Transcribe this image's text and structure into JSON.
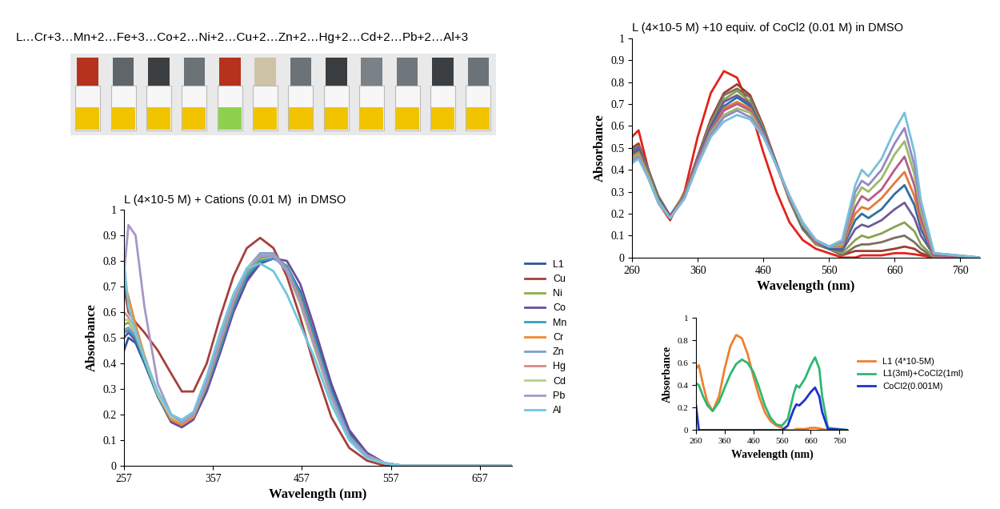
{
  "header": "L…Cr+3…Mn+2…Fe+3…Co+2…Ni+2…Cu+2…Zn+2…Hg+2…Cd+2…Pb+2…Al+3",
  "chart_data": [
    {
      "type": "line",
      "title": "L (4×10-5 M) + Cations (0.01 M)  in DMSO",
      "x_label": "Wavelength (nm)",
      "y_label": "Absorbance",
      "x": [
        257,
        262,
        270,
        280,
        295,
        310,
        322,
        335,
        350,
        365,
        380,
        395,
        410,
        425,
        440,
        455,
        470,
        490,
        510,
        530,
        550,
        570,
        620,
        693
      ],
      "xlim": [
        257,
        693
      ],
      "xticks": [
        257,
        357,
        457,
        557,
        657
      ],
      "ylim": [
        0,
        1
      ],
      "yticks": [
        0,
        0.1,
        0.2,
        0.3,
        0.4,
        0.5,
        0.6,
        0.7,
        0.8,
        0.9,
        1
      ],
      "grid": false,
      "legend": "right",
      "series": [
        {
          "name": "L1",
          "color": "#2F5597",
          "values": [
            0.45,
            0.5,
            0.48,
            0.4,
            0.27,
            0.18,
            0.16,
            0.2,
            0.32,
            0.47,
            0.62,
            0.73,
            0.79,
            0.81,
            0.78,
            0.68,
            0.52,
            0.3,
            0.13,
            0.05,
            0.01,
            0,
            0,
            0
          ]
        },
        {
          "name": "Cu",
          "color": "#A5403D",
          "values": [
            0.7,
            0.6,
            0.56,
            0.52,
            0.45,
            0.36,
            0.29,
            0.29,
            0.4,
            0.58,
            0.74,
            0.85,
            0.89,
            0.85,
            0.74,
            0.58,
            0.4,
            0.19,
            0.07,
            0.02,
            0,
            0,
            0,
            0
          ]
        },
        {
          "name": "Ni",
          "color": "#8CAE46",
          "values": [
            0.55,
            0.56,
            0.52,
            0.42,
            0.28,
            0.18,
            0.16,
            0.19,
            0.31,
            0.47,
            0.63,
            0.75,
            0.81,
            0.82,
            0.78,
            0.66,
            0.5,
            0.28,
            0.12,
            0.04,
            0.01,
            0,
            0,
            0
          ]
        },
        {
          "name": "Co",
          "color": "#6B4C9A",
          "values": [
            0.5,
            0.52,
            0.49,
            0.41,
            0.27,
            0.17,
            0.15,
            0.18,
            0.29,
            0.44,
            0.6,
            0.72,
            0.79,
            0.81,
            0.8,
            0.71,
            0.55,
            0.32,
            0.14,
            0.05,
            0.01,
            0,
            0,
            0
          ]
        },
        {
          "name": "Mn",
          "color": "#31A0C0",
          "values": [
            0.52,
            0.53,
            0.5,
            0.41,
            0.27,
            0.18,
            0.16,
            0.19,
            0.31,
            0.46,
            0.62,
            0.74,
            0.8,
            0.81,
            0.78,
            0.67,
            0.51,
            0.29,
            0.12,
            0.04,
            0.01,
            0,
            0,
            0
          ]
        },
        {
          "name": "Cr",
          "color": "#F0882F",
          "values": [
            0.72,
            0.66,
            0.55,
            0.43,
            0.28,
            0.18,
            0.16,
            0.19,
            0.32,
            0.48,
            0.64,
            0.76,
            0.82,
            0.82,
            0.77,
            0.65,
            0.49,
            0.27,
            0.11,
            0.04,
            0.01,
            0,
            0,
            0
          ]
        },
        {
          "name": "Zn",
          "color": "#7E9ED0",
          "values": [
            0.53,
            0.54,
            0.51,
            0.42,
            0.28,
            0.19,
            0.17,
            0.2,
            0.33,
            0.49,
            0.65,
            0.77,
            0.83,
            0.83,
            0.77,
            0.64,
            0.48,
            0.26,
            0.11,
            0.04,
            0.01,
            0,
            0,
            0
          ]
        },
        {
          "name": "Hg",
          "color": "#D58A89",
          "values": [
            0.6,
            0.58,
            0.52,
            0.42,
            0.28,
            0.19,
            0.17,
            0.2,
            0.33,
            0.49,
            0.65,
            0.76,
            0.82,
            0.82,
            0.76,
            0.64,
            0.48,
            0.27,
            0.11,
            0.04,
            0.01,
            0,
            0,
            0
          ]
        },
        {
          "name": "Cd",
          "color": "#B8CF8C",
          "values": [
            0.57,
            0.57,
            0.52,
            0.42,
            0.28,
            0.19,
            0.17,
            0.2,
            0.33,
            0.49,
            0.65,
            0.77,
            0.82,
            0.82,
            0.76,
            0.63,
            0.47,
            0.26,
            0.11,
            0.04,
            0.01,
            0,
            0,
            0
          ]
        },
        {
          "name": "Pb",
          "color": "#A696C8",
          "values": [
            0.75,
            0.94,
            0.9,
            0.62,
            0.32,
            0.2,
            0.17,
            0.2,
            0.33,
            0.49,
            0.65,
            0.76,
            0.82,
            0.82,
            0.76,
            0.64,
            0.48,
            0.27,
            0.11,
            0.04,
            0.01,
            0,
            0,
            0
          ]
        },
        {
          "name": "Al",
          "color": "#6FC6E0",
          "values": [
            0.8,
            0.62,
            0.53,
            0.42,
            0.29,
            0.2,
            0.18,
            0.21,
            0.35,
            0.52,
            0.67,
            0.77,
            0.79,
            0.76,
            0.67,
            0.55,
            0.43,
            0.24,
            0.1,
            0.03,
            0.01,
            0,
            0,
            0
          ]
        }
      ]
    },
    {
      "type": "line",
      "title": "L (4×10-5 M) +10 equiv. of CoCl2 (0.01 M) in DMSO",
      "x_label": "Wavelength (nm)",
      "y_label": "Absorbance",
      "x": [
        260,
        270,
        285,
        300,
        318,
        340,
        360,
        380,
        400,
        420,
        440,
        460,
        480,
        500,
        520,
        540,
        560,
        580,
        600,
        610,
        620,
        640,
        660,
        675,
        690,
        700,
        720,
        790
      ],
      "xlim": [
        260,
        790
      ],
      "xticks": [
        260,
        360,
        460,
        560,
        660,
        760
      ],
      "ylim": [
        0,
        1
      ],
      "yticks": [
        0,
        0.1,
        0.2,
        0.3,
        0.4,
        0.5,
        0.6,
        0.7,
        0.8,
        0.9,
        1
      ],
      "grid": false,
      "series": [
        {
          "color": "#E3221B",
          "values": [
            0.55,
            0.58,
            0.4,
            0.25,
            0.17,
            0.3,
            0.55,
            0.75,
            0.85,
            0.82,
            0.68,
            0.48,
            0.3,
            0.16,
            0.08,
            0.04,
            0.02,
            0,
            0,
            0.01,
            0.01,
            0.01,
            0.02,
            0.02,
            0.015,
            0.01,
            0,
            0
          ]
        },
        {
          "color": "#9C3D30",
          "values": [
            0.5,
            0.52,
            0.4,
            0.28,
            0.19,
            0.29,
            0.46,
            0.63,
            0.75,
            0.79,
            0.74,
            0.6,
            0.43,
            0.26,
            0.13,
            0.06,
            0.04,
            0.01,
            0.03,
            0.03,
            0.03,
            0.03,
            0.04,
            0.05,
            0.04,
            0.02,
            0,
            0
          ]
        },
        {
          "color": "#7C6F5E",
          "values": [
            0.49,
            0.51,
            0.4,
            0.28,
            0.19,
            0.29,
            0.46,
            0.62,
            0.74,
            0.77,
            0.73,
            0.59,
            0.43,
            0.26,
            0.13,
            0.06,
            0.04,
            0.01,
            0.05,
            0.06,
            0.06,
            0.07,
            0.09,
            0.1,
            0.07,
            0.04,
            0,
            0
          ]
        },
        {
          "color": "#8AA14F",
          "values": [
            0.48,
            0.5,
            0.39,
            0.27,
            0.19,
            0.29,
            0.45,
            0.61,
            0.72,
            0.76,
            0.71,
            0.59,
            0.43,
            0.26,
            0.14,
            0.06,
            0.04,
            0.02,
            0.08,
            0.1,
            0.09,
            0.11,
            0.14,
            0.16,
            0.12,
            0.06,
            0,
            0
          ]
        },
        {
          "color": "#6E5A99",
          "values": [
            0.48,
            0.5,
            0.39,
            0.27,
            0.19,
            0.28,
            0.45,
            0.6,
            0.71,
            0.74,
            0.7,
            0.58,
            0.43,
            0.27,
            0.14,
            0.07,
            0.04,
            0.03,
            0.13,
            0.15,
            0.14,
            0.17,
            0.22,
            0.25,
            0.18,
            0.1,
            0.01,
            0
          ]
        },
        {
          "color": "#2E6EA6",
          "values": [
            0.47,
            0.49,
            0.38,
            0.27,
            0.18,
            0.28,
            0.44,
            0.59,
            0.69,
            0.73,
            0.69,
            0.58,
            0.42,
            0.27,
            0.14,
            0.07,
            0.04,
            0.04,
            0.17,
            0.2,
            0.18,
            0.22,
            0.29,
            0.33,
            0.24,
            0.13,
            0.01,
            0
          ]
        },
        {
          "color": "#E07B39",
          "values": [
            0.46,
            0.48,
            0.38,
            0.26,
            0.18,
            0.28,
            0.44,
            0.58,
            0.68,
            0.71,
            0.68,
            0.57,
            0.42,
            0.27,
            0.15,
            0.07,
            0.05,
            0.05,
            0.2,
            0.23,
            0.22,
            0.27,
            0.34,
            0.39,
            0.28,
            0.16,
            0.01,
            0
          ]
        },
        {
          "color": "#B65C8A",
          "values": [
            0.45,
            0.47,
            0.37,
            0.26,
            0.18,
            0.28,
            0.44,
            0.58,
            0.67,
            0.7,
            0.67,
            0.57,
            0.42,
            0.27,
            0.15,
            0.07,
            0.05,
            0.06,
            0.23,
            0.28,
            0.26,
            0.31,
            0.4,
            0.46,
            0.33,
            0.18,
            0.01,
            0
          ]
        },
        {
          "color": "#9DBB67",
          "values": [
            0.45,
            0.47,
            0.37,
            0.26,
            0.18,
            0.27,
            0.43,
            0.57,
            0.65,
            0.68,
            0.66,
            0.56,
            0.42,
            0.28,
            0.15,
            0.08,
            0.05,
            0.06,
            0.27,
            0.32,
            0.3,
            0.36,
            0.47,
            0.53,
            0.38,
            0.21,
            0.02,
            0
          ]
        },
        {
          "color": "#9887C4",
          "values": [
            0.44,
            0.46,
            0.36,
            0.25,
            0.18,
            0.27,
            0.43,
            0.56,
            0.64,
            0.67,
            0.64,
            0.56,
            0.42,
            0.28,
            0.16,
            0.08,
            0.05,
            0.07,
            0.3,
            0.35,
            0.33,
            0.4,
            0.52,
            0.59,
            0.42,
            0.24,
            0.02,
            0
          ]
        },
        {
          "color": "#79BEDC",
          "values": [
            0.43,
            0.45,
            0.36,
            0.25,
            0.18,
            0.27,
            0.42,
            0.55,
            0.62,
            0.65,
            0.63,
            0.55,
            0.42,
            0.28,
            0.16,
            0.08,
            0.05,
            0.08,
            0.33,
            0.4,
            0.37,
            0.45,
            0.58,
            0.66,
            0.48,
            0.26,
            0.02,
            0
          ]
        }
      ]
    },
    {
      "type": "line",
      "x_label": "Wavelength (nm)",
      "y_label": "Absorbance",
      "x": [
        260,
        270,
        285,
        300,
        318,
        340,
        360,
        380,
        400,
        420,
        440,
        460,
        480,
        500,
        520,
        540,
        560,
        580,
        600,
        610,
        620,
        640,
        660,
        675,
        690,
        700,
        720,
        790
      ],
      "xlim": [
        260,
        790
      ],
      "xticks": [
        260,
        360,
        460,
        560,
        660,
        760
      ],
      "ylim": [
        0,
        1
      ],
      "yticks": [
        0,
        0.2,
        0.4,
        0.6,
        0.8,
        1
      ],
      "grid": false,
      "legend": "right",
      "series": [
        {
          "name": "L1 (4*10-5M)",
          "color": "#F08030",
          "values": [
            0.55,
            0.58,
            0.4,
            0.25,
            0.17,
            0.3,
            0.55,
            0.75,
            0.85,
            0.82,
            0.68,
            0.48,
            0.3,
            0.16,
            0.08,
            0.04,
            0.02,
            0,
            0,
            0.01,
            0.01,
            0.01,
            0.02,
            0.02,
            0.015,
            0.01,
            0,
            0
          ]
        },
        {
          "name": "L1(3ml)+CoCl2(1ml)",
          "color": "#2EB872",
          "values": [
            0.42,
            0.4,
            0.3,
            0.22,
            0.17,
            0.25,
            0.38,
            0.5,
            0.59,
            0.63,
            0.6,
            0.52,
            0.38,
            0.22,
            0.11,
            0.05,
            0.04,
            0.1,
            0.32,
            0.4,
            0.38,
            0.46,
            0.58,
            0.65,
            0.55,
            0.3,
            0.02,
            0
          ]
        },
        {
          "name": "CoCl2(0.001M)",
          "color": "#2030D0",
          "values": [
            0.22,
            0,
            0,
            0,
            0,
            0,
            0,
            0,
            0,
            0,
            0,
            0,
            0,
            0,
            0,
            0,
            0,
            0.04,
            0.18,
            0.23,
            0.22,
            0.27,
            0.34,
            0.38,
            0.3,
            0.16,
            0.01,
            0
          ]
        }
      ]
    }
  ]
}
